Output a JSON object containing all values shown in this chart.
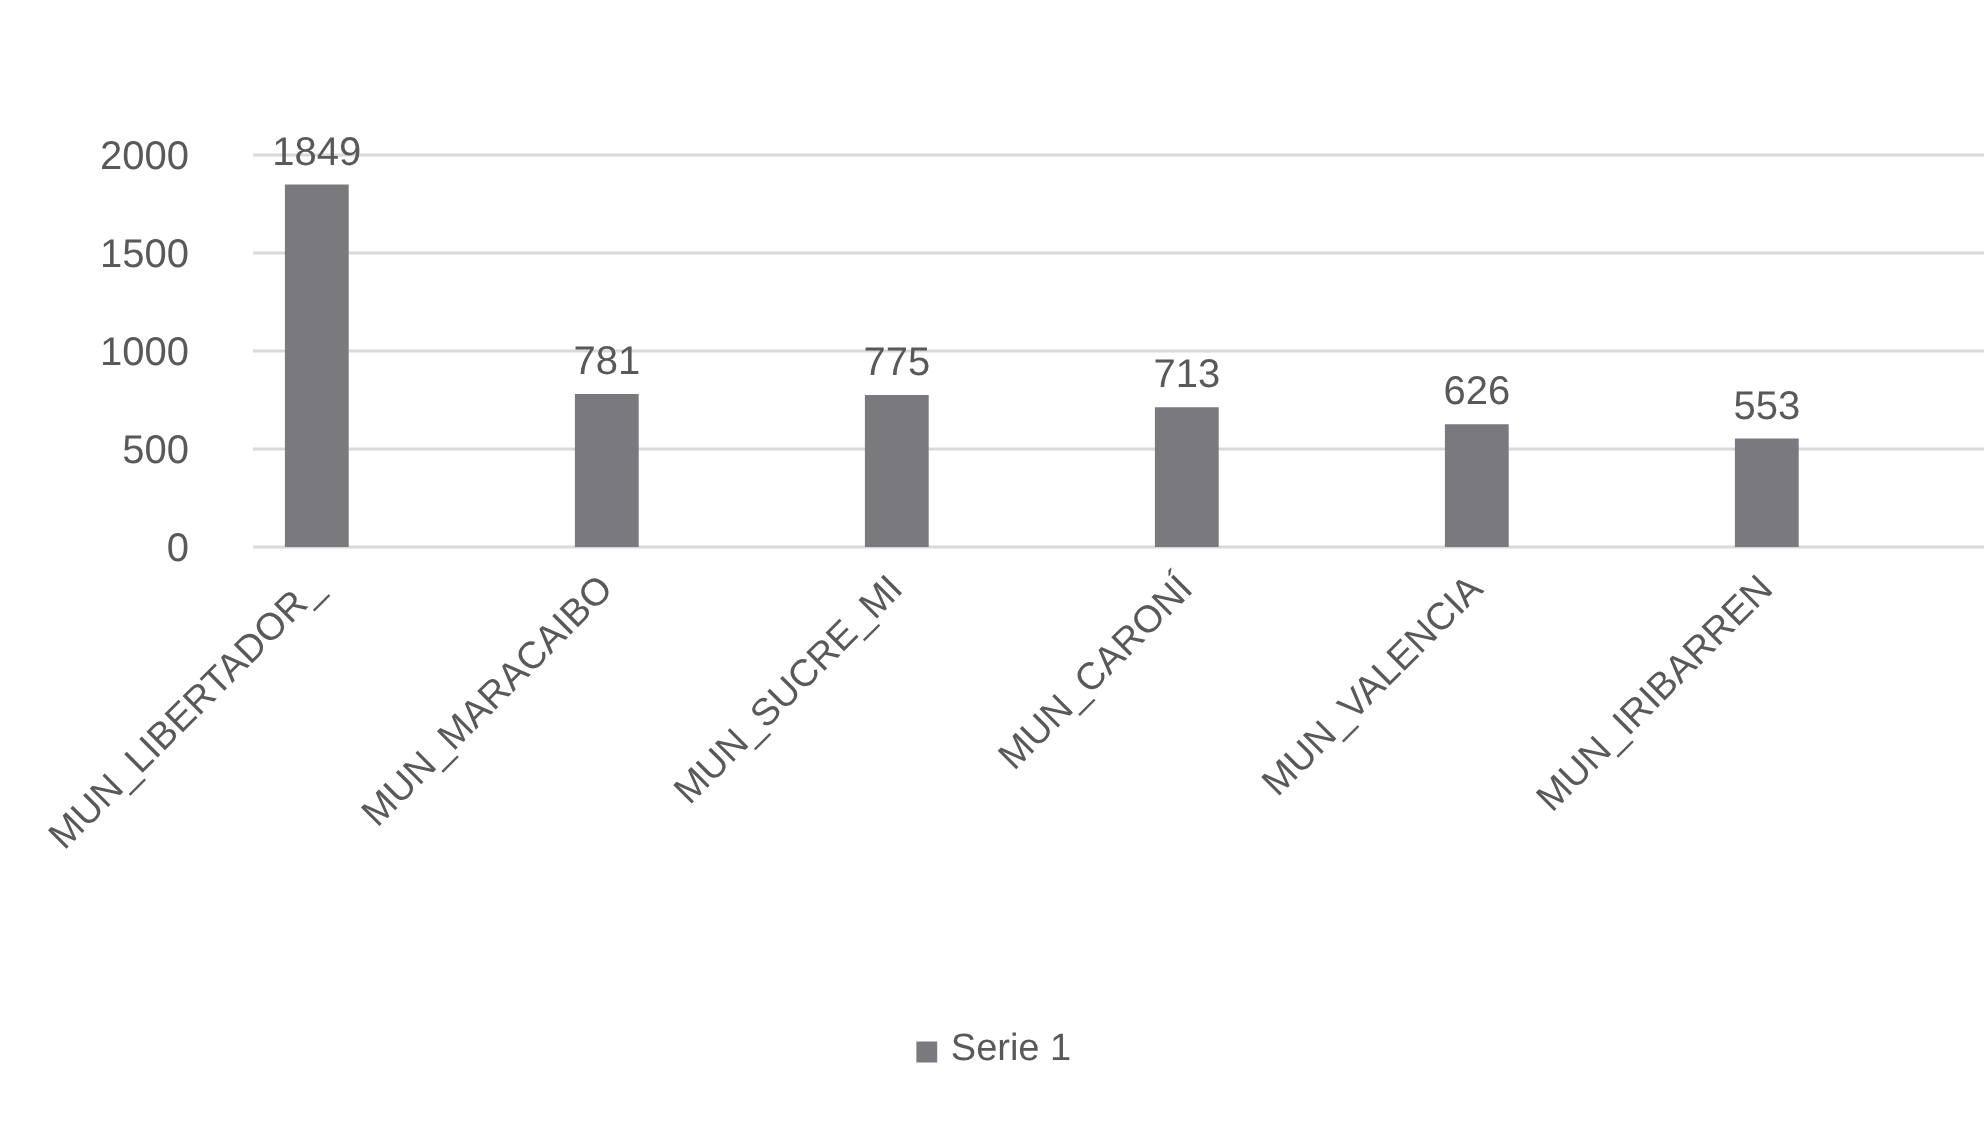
{
  "chart_data": {
    "type": "bar",
    "categories": [
      "MUN_LIBERTADOR_",
      "MUN_MARACAIBO",
      "MUN_SUCRE_MI",
      "MUN_CARONÍ",
      "MUN_VALENCIA",
      "MUN_IRIBARREN"
    ],
    "series": [
      {
        "name": "Serie 1",
        "color": "#7a7a7e",
        "values": [
          1849,
          781,
          775,
          713,
          626,
          553
        ]
      }
    ],
    "ylim": [
      0,
      2000
    ],
    "yticks": [
      0,
      500,
      1000,
      1500,
      2000
    ],
    "grid": "y",
    "legend": "bottom",
    "data_labels": true
  }
}
